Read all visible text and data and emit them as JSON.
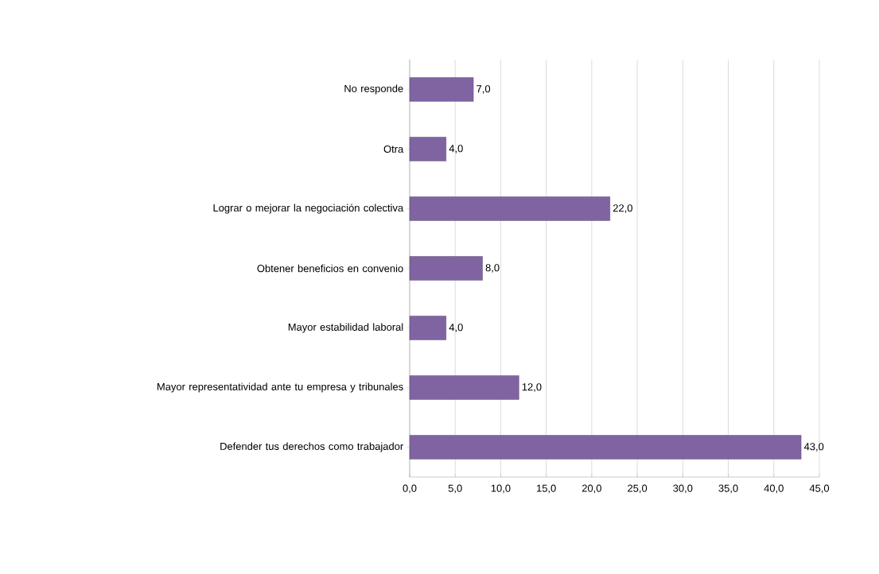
{
  "chart_data": {
    "type": "bar",
    "orientation": "horizontal",
    "categories": [
      "No responde",
      "Otra",
      "Lograr o mejorar la negociación colectiva",
      "Obtener beneficios en convenio",
      "Mayor estabilidad laboral",
      "Mayor representatividad ante tu empresa y tribunales",
      "Defender tus derechos como trabajador"
    ],
    "values": [
      7,
      4,
      22,
      8,
      4,
      12,
      43
    ],
    "value_labels": [
      "7,0",
      "4,0",
      "22,0",
      "8,0",
      "4,0",
      "12,0",
      "43,0"
    ],
    "color": "#8064a2",
    "xlim": [
      0,
      45
    ],
    "xticks": [
      {
        "value": 0,
        "label": "0,0"
      },
      {
        "value": 5,
        "label": "5,0"
      },
      {
        "value": 10,
        "label": "10,0"
      },
      {
        "value": 15,
        "label": "15,0"
      },
      {
        "value": 20,
        "label": "20,0"
      },
      {
        "value": 25,
        "label": "25,0"
      },
      {
        "value": 30,
        "label": "30,0"
      },
      {
        "value": 35,
        "label": "35,0"
      },
      {
        "value": 40,
        "label": "40,0"
      },
      {
        "value": 45,
        "label": "45,0"
      }
    ],
    "grid": "x"
  }
}
